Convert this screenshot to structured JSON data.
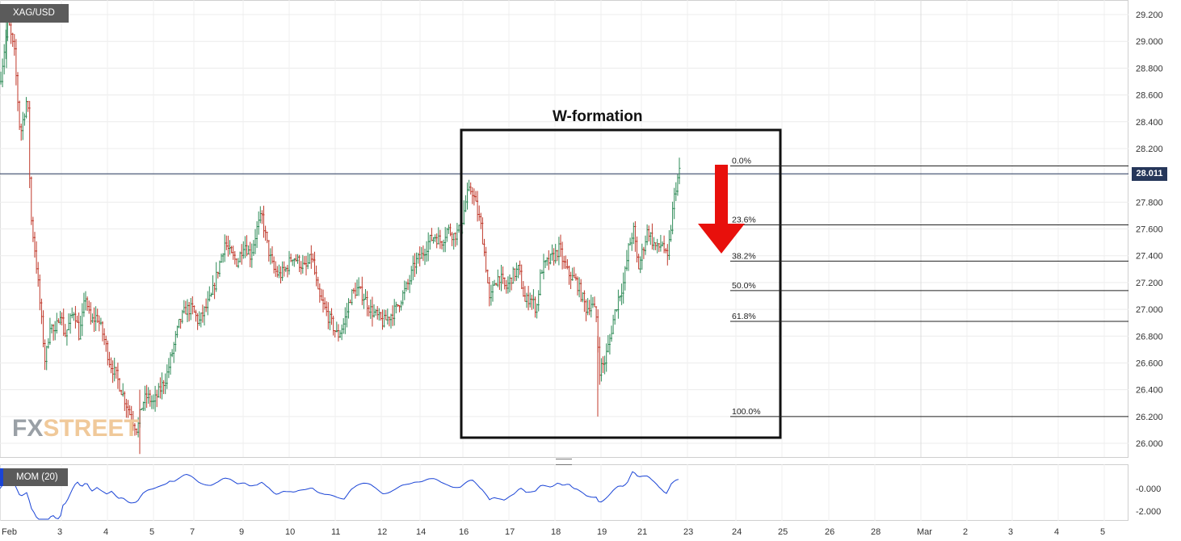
{
  "symbol": "XAG/USD",
  "indicator_label": "MOM (20)",
  "current_price_label": "28.011",
  "annotation": {
    "title": "W-formation"
  },
  "logo": {
    "part1": "FX",
    "part2": "STREET"
  },
  "colors": {
    "up": "#2e8b57",
    "down": "#c0392b",
    "mom_line": "#1a44d6",
    "arrow": "#e8100c",
    "price_line": "#26375a"
  },
  "chart_data": [
    {
      "type": "candlestick",
      "title": "",
      "price_axis": {
        "ticks": [
          "29.200",
          "29.000",
          "28.800",
          "28.600",
          "28.400",
          "28.200",
          "28.000",
          "27.800",
          "27.600",
          "27.400",
          "27.200",
          "27.000",
          "26.800",
          "26.600",
          "26.400",
          "26.200",
          "26.000"
        ],
        "ylim": [
          25.9,
          29.3
        ]
      },
      "date_axis": {
        "ticks": [
          "Feb",
          "3",
          "4",
          "5",
          "7",
          "9",
          "10",
          "11",
          "12",
          "14",
          "16",
          "17",
          "18",
          "19",
          "21",
          "23",
          "24",
          "25",
          "26",
          "28",
          "Mar",
          "2",
          "3",
          "4",
          "5"
        ]
      },
      "current_price": 28.011,
      "fibonacci": [
        {
          "label": "0.0%",
          "value": 28.07
        },
        {
          "label": "23.6%",
          "value": 27.63
        },
        {
          "label": "38.2%",
          "value": 27.36
        },
        {
          "label": "50.0%",
          "value": 27.14
        },
        {
          "label": "61.8%",
          "value": 26.91
        },
        {
          "label": "100.0%",
          "value": 26.2
        }
      ],
      "close_path": [
        [
          0,
          28.7
        ],
        [
          10,
          29.15
        ],
        [
          18,
          28.9
        ],
        [
          25,
          28.3
        ],
        [
          34,
          28.6
        ],
        [
          38,
          27.7
        ],
        [
          44,
          27.4
        ],
        [
          50,
          27.0
        ],
        [
          56,
          26.6
        ],
        [
          62,
          26.9
        ],
        [
          68,
          26.8
        ],
        [
          74,
          27.0
        ],
        [
          80,
          26.8
        ],
        [
          86,
          26.9
        ],
        [
          92,
          27.0
        ],
        [
          98,
          26.8
        ],
        [
          106,
          27.1
        ],
        [
          112,
          26.9
        ],
        [
          120,
          26.95
        ],
        [
          128,
          26.8
        ],
        [
          136,
          26.6
        ],
        [
          144,
          26.5
        ],
        [
          150,
          26.4
        ],
        [
          156,
          26.3
        ],
        [
          162,
          26.2
        ],
        [
          170,
          26.1
        ],
        [
          176,
          26.3
        ],
        [
          182,
          26.35
        ],
        [
          190,
          26.3
        ],
        [
          198,
          26.4
        ],
        [
          206,
          26.5
        ],
        [
          214,
          26.7
        ],
        [
          222,
          26.9
        ],
        [
          230,
          27.0
        ],
        [
          238,
          27.0
        ],
        [
          246,
          26.9
        ],
        [
          254,
          27.0
        ],
        [
          262,
          27.1
        ],
        [
          270,
          27.3
        ],
        [
          278,
          27.5
        ],
        [
          286,
          27.4
        ],
        [
          294,
          27.35
        ],
        [
          302,
          27.5
        ],
        [
          310,
          27.4
        ],
        [
          318,
          27.6
        ],
        [
          324,
          27.7
        ],
        [
          330,
          27.5
        ],
        [
          338,
          27.3
        ],
        [
          346,
          27.25
        ],
        [
          354,
          27.3
        ],
        [
          362,
          27.4
        ],
        [
          370,
          27.35
        ],
        [
          378,
          27.3
        ],
        [
          386,
          27.4
        ],
        [
          394,
          27.1
        ],
        [
          402,
          27.0
        ],
        [
          410,
          26.9
        ],
        [
          418,
          26.8
        ],
        [
          426,
          26.9
        ],
        [
          434,
          27.1
        ],
        [
          442,
          27.15
        ],
        [
          450,
          27.1
        ],
        [
          458,
          27.0
        ],
        [
          466,
          26.95
        ],
        [
          474,
          26.9
        ],
        [
          482,
          26.95
        ],
        [
          490,
          27.0
        ],
        [
          498,
          27.1
        ],
        [
          506,
          27.2
        ],
        [
          514,
          27.35
        ],
        [
          522,
          27.4
        ],
        [
          530,
          27.5
        ],
        [
          538,
          27.55
        ],
        [
          546,
          27.5
        ],
        [
          554,
          27.6
        ],
        [
          562,
          27.55
        ],
        [
          570,
          27.6
        ],
        [
          578,
          27.85
        ],
        [
          584,
          27.9
        ],
        [
          590,
          27.75
        ],
        [
          596,
          27.6
        ],
        [
          602,
          27.3
        ],
        [
          606,
          27.05
        ],
        [
          612,
          27.2
        ],
        [
          618,
          27.25
        ],
        [
          626,
          27.15
        ],
        [
          634,
          27.25
        ],
        [
          642,
          27.3
        ],
        [
          650,
          27.05
        ],
        [
          656,
          27.1
        ],
        [
          664,
          27.0
        ],
        [
          670,
          27.3
        ],
        [
          678,
          27.35
        ],
        [
          686,
          27.4
        ],
        [
          692,
          27.45
        ],
        [
          700,
          27.3
        ],
        [
          706,
          27.25
        ],
        [
          714,
          27.2
        ],
        [
          720,
          27.1
        ],
        [
          726,
          27.0
        ],
        [
          732,
          27.05
        ],
        [
          738,
          26.95
        ],
        [
          742,
          26.55
        ],
        [
          748,
          26.6
        ],
        [
          754,
          26.75
        ],
        [
          760,
          26.95
        ],
        [
          766,
          27.1
        ],
        [
          772,
          27.2
        ],
        [
          778,
          27.45
        ],
        [
          784,
          27.6
        ],
        [
          790,
          27.3
        ],
        [
          796,
          27.45
        ],
        [
          802,
          27.6
        ],
        [
          808,
          27.5
        ],
        [
          814,
          27.45
        ],
        [
          820,
          27.5
        ],
        [
          826,
          27.35
        ],
        [
          832,
          27.7
        ],
        [
          836,
          27.9
        ],
        [
          842,
          28.05
        ]
      ]
    },
    {
      "type": "line",
      "name": "MOM (20)",
      "y_ticks": [
        "-0.000",
        "-2.000"
      ],
      "ylim": [
        -2.3,
        1.0
      ]
    }
  ]
}
